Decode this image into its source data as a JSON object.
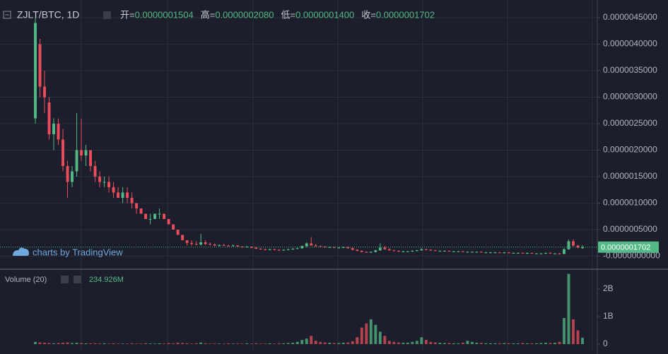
{
  "chart_data": {
    "type": "candlestick",
    "symbol": "ZJLT/BTC, 1D",
    "ohlc_legend": [
      {
        "name": "开=",
        "value": "0.0000001504"
      },
      {
        "name": "高=",
        "value": "0.0000002080"
      },
      {
        "name": "低=",
        "value": "0.0000001400"
      },
      {
        "name": "收=",
        "value": "0.0000001702"
      }
    ],
    "watermark": "charts by TradingView",
    "up_color": "#53b987",
    "down_color": "#eb4d5c",
    "ylim": [
      -2.333e-07,
      4.8333e-06
    ],
    "yticks": [
      {
        "value": 4.5e-06,
        "label": "0.0000045000"
      },
      {
        "value": 4e-06,
        "label": "0.0000040000"
      },
      {
        "value": 3.5e-06,
        "label": "0.0000035000"
      },
      {
        "value": 3e-06,
        "label": "0.0000030000"
      },
      {
        "value": 2.5e-06,
        "label": "0.0000025000"
      },
      {
        "value": 2e-06,
        "label": "0.0000020000"
      },
      {
        "value": 1.5e-06,
        "label": "0.0000015000"
      },
      {
        "value": 1e-06,
        "label": "0.0000010000"
      },
      {
        "value": 5e-07,
        "label": "0.0000005000"
      },
      {
        "value": 0,
        "label": "-0.0000000000"
      }
    ],
    "last_price": {
      "value": 1.702e-07,
      "label": "0.0000001702"
    },
    "candles": [
      [
        2.6e-06,
        4.5e-06,
        2.5e-06,
        4.4e-06
      ],
      [
        4e-06,
        4.1e-06,
        3e-06,
        3.2e-06
      ],
      [
        3.2e-06,
        3.5e-06,
        2.7e-06,
        3e-06
      ],
      [
        2.9e-06,
        3e-06,
        2.2e-06,
        2.3e-06
      ],
      [
        2.3e-06,
        2.6e-06,
        2e-06,
        2.5e-06
      ],
      [
        2.5e-06,
        2.6e-06,
        2.1e-06,
        2.2e-06
      ],
      [
        2.2e-06,
        2.4e-06,
        1.6e-06,
        1.7e-06
      ],
      [
        1.7e-06,
        1.8e-06,
        1.1e-06,
        1.4e-06
      ],
      [
        1.4e-06,
        1.7e-06,
        1.3e-06,
        1.6e-06
      ],
      [
        1.6e-06,
        2.7e-06,
        1.5e-06,
        2e-06
      ],
      [
        2e-06,
        2.6e-06,
        1.8e-06,
        1.9e-06
      ],
      [
        1.9e-06,
        2.1e-06,
        1.7e-06,
        2e-06
      ],
      [
        2e-06,
        2e-06,
        1.6e-06,
        1.7e-06
      ],
      [
        1.7e-06,
        1.8e-06,
        1.4e-06,
        1.5e-06
      ],
      [
        1.5e-06,
        1.6e-06,
        1.3e-06,
        1.4e-06
      ],
      [
        1.4e-06,
        1.5e-06,
        1.3e-06,
        1.4e-06
      ],
      [
        1.4e-06,
        1.5e-06,
        1.2e-06,
        1.3e-06
      ],
      [
        1.3e-06,
        1.4e-06,
        1.1e-06,
        1.2e-06
      ],
      [
        1.2e-06,
        1.3e-06,
        1.1e-06,
        1.1e-06
      ],
      [
        1.1e-06,
        1.3e-06,
        1e-06,
        1.2e-06
      ],
      [
        1.2e-06,
        1.3e-06,
        1e-06,
        1.1e-06
      ],
      [
        1.1e-06,
        1.2e-06,
        9e-07,
        1e-06
      ],
      [
        1e-06,
        1e-06,
        8e-07,
        9e-07
      ],
      [
        9e-07,
        9e-07,
        8e-07,
        8e-07
      ],
      [
        8e-07,
        8e-07,
        7e-07,
        7e-07
      ],
      [
        7e-07,
        8e-07,
        6e-07,
        7e-07
      ],
      [
        7e-07,
        8e-07,
        7e-07,
        8e-07
      ],
      [
        8e-07,
        9e-07,
        7e-07,
        8e-07
      ],
      [
        8e-07,
        8e-07,
        7e-07,
        7e-07
      ],
      [
        7e-07,
        7e-07,
        6e-07,
        6e-07
      ],
      [
        6e-07,
        6e-07,
        5e-07,
        5e-07
      ],
      [
        5e-07,
        5e-07,
        4e-07,
        4e-07
      ],
      [
        4e-07,
        4e-07,
        3e-07,
        3e-07
      ],
      [
        3e-07,
        3e-07,
        2e-07,
        2.5e-07
      ],
      [
        2.5e-07,
        3e-07,
        2e-07,
        2.3e-07
      ],
      [
        2.3e-07,
        2.8e-07,
        2e-07,
        2.2e-07
      ],
      [
        2.2e-07,
        4.2e-07,
        2e-07,
        2.6e-07
      ],
      [
        2.6e-07,
        3e-07,
        2.1e-07,
        2.3e-07
      ],
      [
        2.3e-07,
        2.6e-07,
        2e-07,
        2.2e-07
      ],
      [
        2.2e-07,
        2.4e-07,
        1.9e-07,
        2e-07
      ],
      [
        2e-07,
        2.2e-07,
        1.8e-07,
        2.1e-07
      ],
      [
        2.1e-07,
        2.3e-07,
        1.9e-07,
        2e-07
      ],
      [
        2e-07,
        2.1e-07,
        1.8e-07,
        1.9e-07
      ],
      [
        1.9e-07,
        2.2e-07,
        1.8e-07,
        2e-07
      ],
      [
        2e-07,
        2.1e-07,
        1.8e-07,
        1.8e-07
      ],
      [
        1.8e-07,
        1.9e-07,
        1.6e-07,
        1.7e-07
      ],
      [
        1.7e-07,
        1.9e-07,
        1.6e-07,
        1.8e-07
      ],
      [
        1.8e-07,
        1.8e-07,
        1.5e-07,
        1.6e-07
      ],
      [
        1.6e-07,
        1.7e-07,
        1.3e-07,
        1.4e-07
      ],
      [
        1.4e-07,
        1.5e-07,
        1.2e-07,
        1.3e-07
      ],
      [
        1.3e-07,
        1.4e-07,
        1.1e-07,
        1.2e-07
      ],
      [
        1.2e-07,
        1.4e-07,
        1.1e-07,
        1.3e-07
      ],
      [
        1.3e-07,
        1.4e-07,
        1.1e-07,
        1.2e-07
      ],
      [
        1.2e-07,
        1.3e-07,
        1e-07,
        1.1e-07
      ],
      [
        1.1e-07,
        1.3e-07,
        1e-07,
        1.2e-07
      ],
      [
        1.2e-07,
        1.4e-07,
        1.1e-07,
        1.3e-07
      ],
      [
        1.3e-07,
        1.5e-07,
        1.2e-07,
        1.4e-07
      ],
      [
        1.4e-07,
        1.6e-07,
        1.3e-07,
        1.5e-07
      ],
      [
        1.5e-07,
        2e-07,
        1.4e-07,
        1.9e-07
      ],
      [
        1.9e-07,
        2.6e-07,
        1.7e-07,
        2.4e-07
      ],
      [
        2.4e-07,
        3.6e-07,
        2.2e-07,
        2e-07
      ],
      [
        2e-07,
        2.3e-07,
        1.8e-07,
        1.9e-07
      ],
      [
        1.9e-07,
        2e-07,
        1.7e-07,
        1.8e-07
      ],
      [
        1.8e-07,
        1.9e-07,
        1.6e-07,
        1.7e-07
      ],
      [
        1.7e-07,
        1.8e-07,
        1.6e-07,
        1.7e-07
      ],
      [
        1.7e-07,
        1.8e-07,
        1.5e-07,
        1.6e-07
      ],
      [
        1.6e-07,
        1.7e-07,
        1.5e-07,
        1.6e-07
      ],
      [
        1.6e-07,
        1.8e-07,
        1.5e-07,
        1.7e-07
      ],
      [
        1.7e-07,
        1.8e-07,
        1.4e-07,
        1.5e-07
      ],
      [
        1.5e-07,
        1.6e-07,
        1.1e-07,
        1.2e-07
      ],
      [
        1.2e-07,
        1.3e-07,
        9e-08,
        1e-07
      ],
      [
        1e-07,
        1.1e-07,
        7e-08,
        8e-08
      ],
      [
        8e-08,
        9e-08,
        6e-08,
        7e-08
      ],
      [
        7e-08,
        9e-08,
        6e-08,
        8e-08
      ],
      [
        8e-08,
        1.2e-07,
        7e-08,
        1.1e-07
      ],
      [
        1.1e-07,
        2.4e-07,
        1e-07,
        1.6e-07
      ],
      [
        1.6e-07,
        1.9e-07,
        1.2e-07,
        1.3e-07
      ],
      [
        1.3e-07,
        1.5e-07,
        1e-07,
        1.1e-07
      ],
      [
        1.1e-07,
        1.2e-07,
        9e-08,
        1e-07
      ],
      [
        1e-07,
        1.1e-07,
        8e-08,
        9e-08
      ],
      [
        9e-08,
        1e-07,
        8e-08,
        9e-08
      ],
      [
        9e-08,
        1e-07,
        8e-08,
        9e-08
      ],
      [
        9e-08,
        1.1e-07,
        8e-08,
        1e-07
      ],
      [
        1e-07,
        1.2e-07,
        9e-08,
        1.1e-07
      ],
      [
        1.1e-07,
        1.5e-07,
        1e-07,
        1.3e-07
      ],
      [
        1.3e-07,
        1.4e-07,
        1.1e-07,
        1.2e-07
      ],
      [
        1.2e-07,
        1.3e-07,
        1e-07,
        1.1e-07
      ],
      [
        1.1e-07,
        1.2e-07,
        1e-07,
        1e-07
      ],
      [
        1e-07,
        1.1e-07,
        9e-08,
        1e-07
      ],
      [
        1e-07,
        1.1e-07,
        9e-08,
        1e-07
      ],
      [
        1e-07,
        1.1e-07,
        9e-08,
        9e-08
      ],
      [
        9e-08,
        1e-07,
        8e-08,
        9e-08
      ],
      [
        9e-08,
        1e-07,
        8e-08,
        9e-08
      ],
      [
        9e-08,
        1e-07,
        8e-08,
        8e-08
      ],
      [
        8e-08,
        9e-08,
        7e-08,
        8e-08
      ],
      [
        8e-08,
        9e-08,
        7e-08,
        8e-08
      ],
      [
        8e-08,
        9e-08,
        7e-08,
        8e-08
      ],
      [
        8e-08,
        9e-08,
        7e-08,
        7e-08
      ],
      [
        7e-08,
        8e-08,
        6e-08,
        7e-08
      ],
      [
        7e-08,
        8e-08,
        6e-08,
        7e-08
      ],
      [
        7e-08,
        8e-08,
        6e-08,
        7e-08
      ],
      [
        7e-08,
        8e-08,
        6e-08,
        6e-08
      ],
      [
        6e-08,
        8e-08,
        5e-08,
        7e-08
      ],
      [
        7e-08,
        8e-08,
        6e-08,
        6e-08
      ],
      [
        6e-08,
        7e-08,
        5e-08,
        6e-08
      ],
      [
        6e-08,
        7e-08,
        5e-08,
        6e-08
      ],
      [
        6e-08,
        7e-08,
        5e-08,
        5e-08
      ],
      [
        5e-08,
        7e-08,
        4e-08,
        6e-08
      ],
      [
        6e-08,
        7e-08,
        5e-08,
        5e-08
      ],
      [
        5e-08,
        6e-08,
        4e-08,
        5e-08
      ],
      [
        5e-08,
        6e-08,
        4e-08,
        5e-08
      ],
      [
        5e-08,
        7e-08,
        4e-08,
        6e-08
      ],
      [
        6e-08,
        7e-08,
        5e-08,
        5e-08
      ],
      [
        5e-08,
        6e-08,
        4e-08,
        5e-08
      ],
      [
        5e-08,
        6e-08,
        3e-08,
        4e-08
      ],
      [
        4e-08,
        1.5e-07,
        4e-08,
        1.3e-07
      ],
      [
        1.3e-07,
        3.1e-07,
        1.2e-07,
        2.8e-07
      ],
      [
        2.8e-07,
        3.2e-07,
        1.8e-07,
        2e-07
      ],
      [
        2e-07,
        2.1e-07,
        1.5e-07,
        1.6e-07
      ],
      [
        1.504e-07,
        2.08e-07,
        1.4e-07,
        1.702e-07
      ]
    ],
    "volume": {
      "title": "Volume (20)",
      "last_label": "234.926M",
      "ylim": [
        -205000000,
        2667000000
      ],
      "yticks": [
        {
          "value": 2000000000,
          "label": "2B"
        },
        {
          "value": 1000000000,
          "label": "1B"
        },
        0
      ],
      "values": [
        80000000.0,
        60000000.0,
        50000000.0,
        40000000.0,
        30000000.0,
        40000000.0,
        50000000.0,
        60000000.0,
        40000000.0,
        50000000.0,
        40000000.0,
        30000000.0,
        30000000.0,
        30000000.0,
        20000000.0,
        30000000.0,
        20000000.0,
        30000000.0,
        20000000.0,
        20000000.0,
        20000000.0,
        30000000.0,
        20000000.0,
        20000000.0,
        30000000.0,
        20000000.0,
        20000000.0,
        30000000.0,
        20000000.0,
        40000000.0,
        30000000.0,
        50000000.0,
        40000000.0,
        30000000.0,
        20000000.0,
        30000000.0,
        60000000.0,
        30000000.0,
        20000000.0,
        20000000.0,
        20000000.0,
        20000000.0,
        30000000.0,
        20000000.0,
        20000000.0,
        20000000.0,
        30000000.0,
        20000000.0,
        30000000.0,
        20000000.0,
        20000000.0,
        30000000.0,
        20000000.0,
        30000000.0,
        30000000.0,
        40000000.0,
        50000000.0,
        80000000.0,
        150000000.0,
        200000000.0,
        300000000.0,
        120000000.0,
        80000000.0,
        60000000.0,
        50000000.0,
        40000000.0,
        40000000.0,
        50000000.0,
        60000000.0,
        100000000.0,
        250000000.0,
        600000000.0,
        750000000.0,
        900000000.0,
        700000000.0,
        450000000.0,
        300000000.0,
        120000000.0,
        80000000.0,
        60000000.0,
        50000000.0,
        50000000.0,
        80000000.0,
        120000000.0,
        250000000.0,
        150000000.0,
        80000000.0,
        60000000.0,
        50000000.0,
        40000000.0,
        40000000.0,
        30000000.0,
        30000000.0,
        50000000.0,
        120000000.0,
        80000000.0,
        50000000.0,
        40000000.0,
        30000000.0,
        30000000.0,
        30000000.0,
        30000000.0,
        40000000.0,
        30000000.0,
        30000000.0,
        30000000.0,
        40000000.0,
        30000000.0,
        30000000.0,
        30000000.0,
        40000000.0,
        50000000.0,
        40000000.0,
        50000000.0,
        80000000.0,
        950000000.0,
        2550000000.0,
        900000000.0,
        500000000.0,
        234926000
      ]
    }
  }
}
